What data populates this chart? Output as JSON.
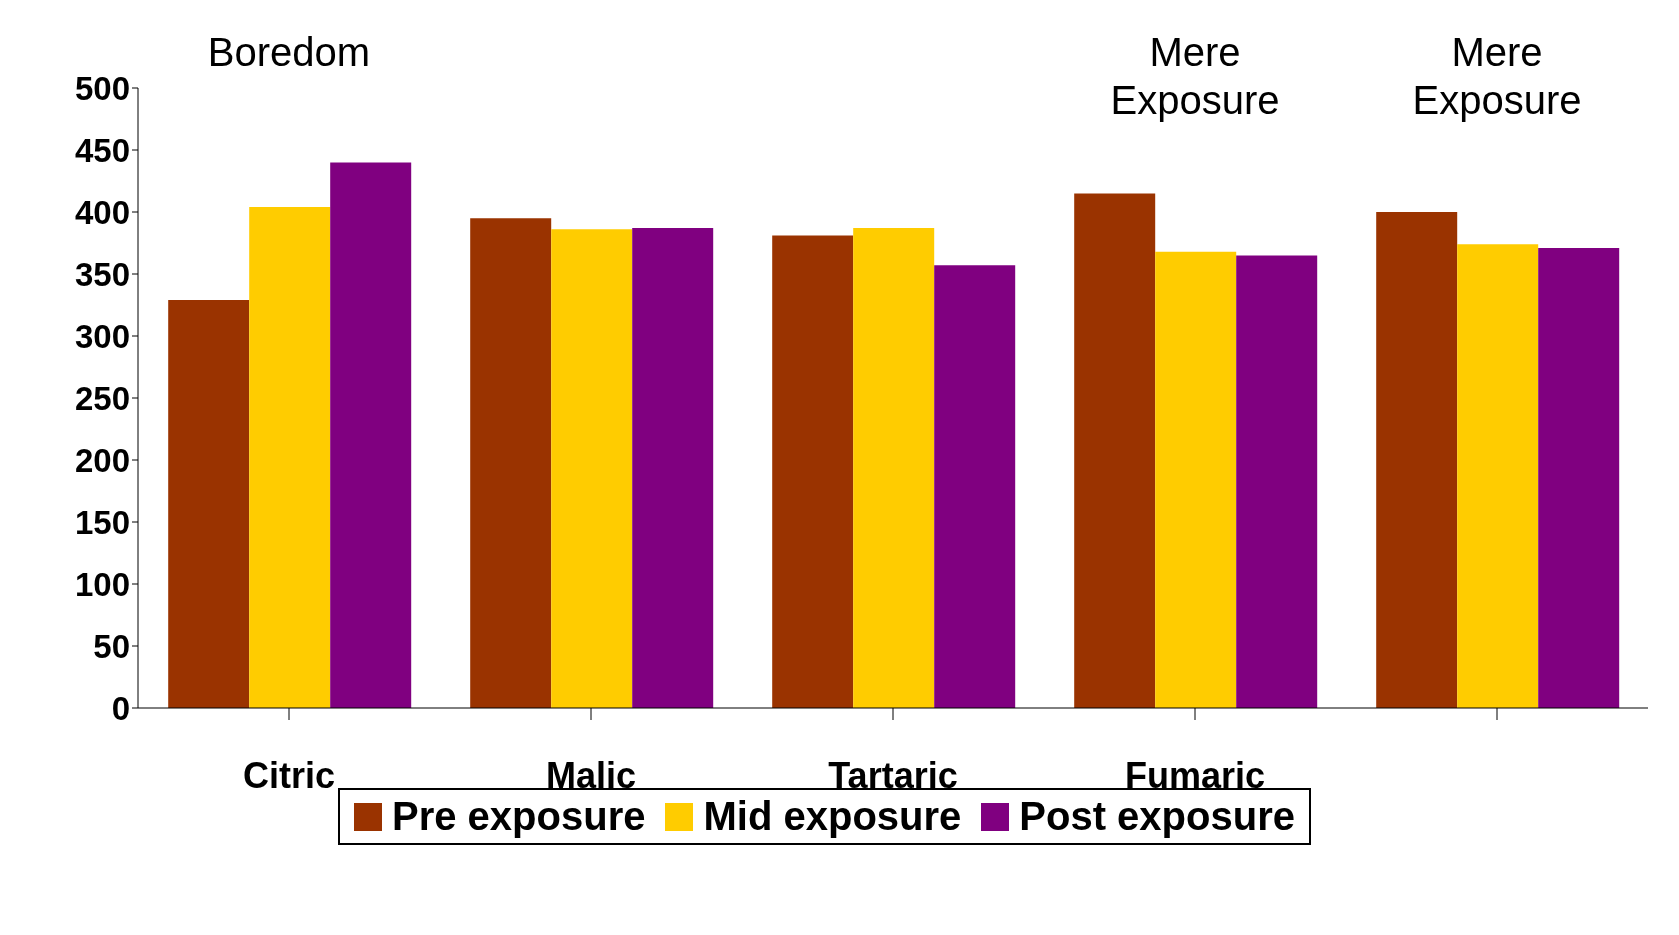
{
  "chart_data": {
    "type": "bar",
    "categories": [
      "Citric",
      "Malic",
      "Tartaric",
      "Fumaric",
      null
    ],
    "series": [
      {
        "name": "Pre exposure",
        "color": "#9a3300",
        "values": [
          329,
          395,
          381,
          415,
          400
        ]
      },
      {
        "name": "Mid exposure",
        "color": "#ffcc00",
        "values": [
          404,
          386,
          387,
          368,
          374
        ]
      },
      {
        "name": "Post exposure",
        "color": "#800080",
        "values": [
          440,
          387,
          357,
          365,
          371
        ]
      }
    ],
    "ylim": [
      0,
      500
    ],
    "yticks": [
      0,
      50,
      100,
      150,
      200,
      250,
      300,
      350,
      400,
      450,
      500
    ],
    "grid": false,
    "legend": "bottom",
    "annotations": [
      "Boredom",
      "Mere Exposure",
      "Mere Exposure"
    ]
  }
}
